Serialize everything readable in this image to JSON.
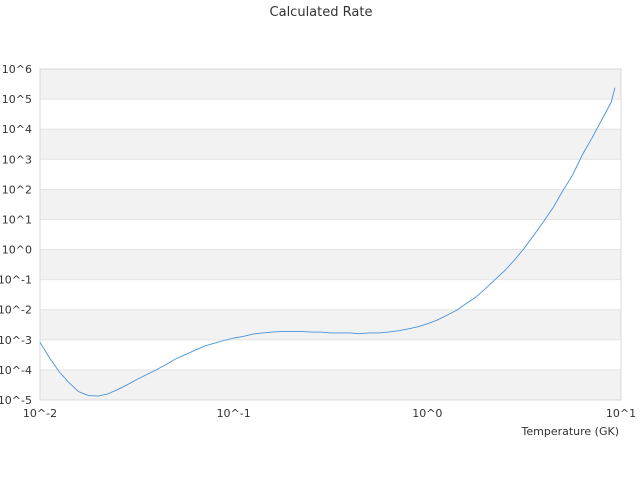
{
  "chart_data": {
    "type": "line",
    "title": "Calculated Rate",
    "xlabel": "Temperature (GK)",
    "ylabel": "",
    "x_scale": "log",
    "y_scale": "log",
    "xlim": [
      0.01,
      10
    ],
    "ylim": [
      1e-05,
      1000000.0
    ],
    "x_ticks": [
      {
        "value": 0.01,
        "label": "10^-2"
      },
      {
        "value": 0.1,
        "label": "10^-1"
      },
      {
        "value": 1,
        "label": "10^0"
      },
      {
        "value": 10,
        "label": "10^1"
      }
    ],
    "y_ticks": [
      {
        "value": 1e-05,
        "label": "10^-5"
      },
      {
        "value": 0.0001,
        "label": "10^-4"
      },
      {
        "value": 0.001,
        "label": "10^-3"
      },
      {
        "value": 0.01,
        "label": "10^-2"
      },
      {
        "value": 0.1,
        "label": "10^-1"
      },
      {
        "value": 1,
        "label": "10^0"
      },
      {
        "value": 10,
        "label": "10^1"
      },
      {
        "value": 100,
        "label": "10^2"
      },
      {
        "value": 1000,
        "label": "10^3"
      },
      {
        "value": 10000,
        "label": "10^4"
      },
      {
        "value": 100000,
        "label": "10^5"
      },
      {
        "value": 1000000,
        "label": "10^6"
      }
    ],
    "grid": true,
    "band_color": "#f2f2f2",
    "line_color": "#4a90d9",
    "series": [
      {
        "x": [
          0.01,
          0.0112,
          0.0126,
          0.0141,
          0.0158,
          0.0178,
          0.02,
          0.0224,
          0.0251,
          0.0282,
          0.0316,
          0.0355,
          0.0398,
          0.0447,
          0.0501,
          0.0562,
          0.0631,
          0.0708,
          0.0794,
          0.0891,
          0.1,
          0.1122,
          0.1259,
          0.1413,
          0.1585,
          0.1778,
          0.1995,
          0.2239,
          0.2512,
          0.2818,
          0.3162,
          0.3548,
          0.3981,
          0.4467,
          0.5012,
          0.5623,
          0.631,
          0.7079,
          0.7943,
          0.8913,
          1.0,
          1.122,
          1.259,
          1.413,
          1.585,
          1.778,
          1.995,
          2.239,
          2.512,
          2.818,
          3.162,
          3.548,
          3.981,
          4.467,
          5.012,
          5.623,
          6.31,
          7.079,
          7.943,
          8.913,
          9.3
        ],
        "y": [
          0.00083,
          0.00025,
          8.5e-05,
          3.8e-05,
          1.9e-05,
          1.4e-05,
          1.35e-05,
          1.6e-05,
          2.2e-05,
          3.2e-05,
          4.8e-05,
          7e-05,
          0.0001,
          0.00015,
          0.00023,
          0.00032,
          0.00045,
          0.00062,
          0.00077,
          0.00095,
          0.00115,
          0.0013,
          0.00155,
          0.0017,
          0.0018,
          0.0019,
          0.0019,
          0.0019,
          0.0018,
          0.0018,
          0.0017,
          0.0017,
          0.0017,
          0.0016,
          0.0017,
          0.0017,
          0.0018,
          0.002,
          0.0023,
          0.0027,
          0.0034,
          0.0045,
          0.0065,
          0.0095,
          0.016,
          0.026,
          0.05,
          0.1,
          0.2,
          0.45,
          1.1,
          3.0,
          8.5,
          25,
          90,
          300,
          1400,
          5000,
          20000,
          80000,
          240000
        ]
      }
    ]
  }
}
